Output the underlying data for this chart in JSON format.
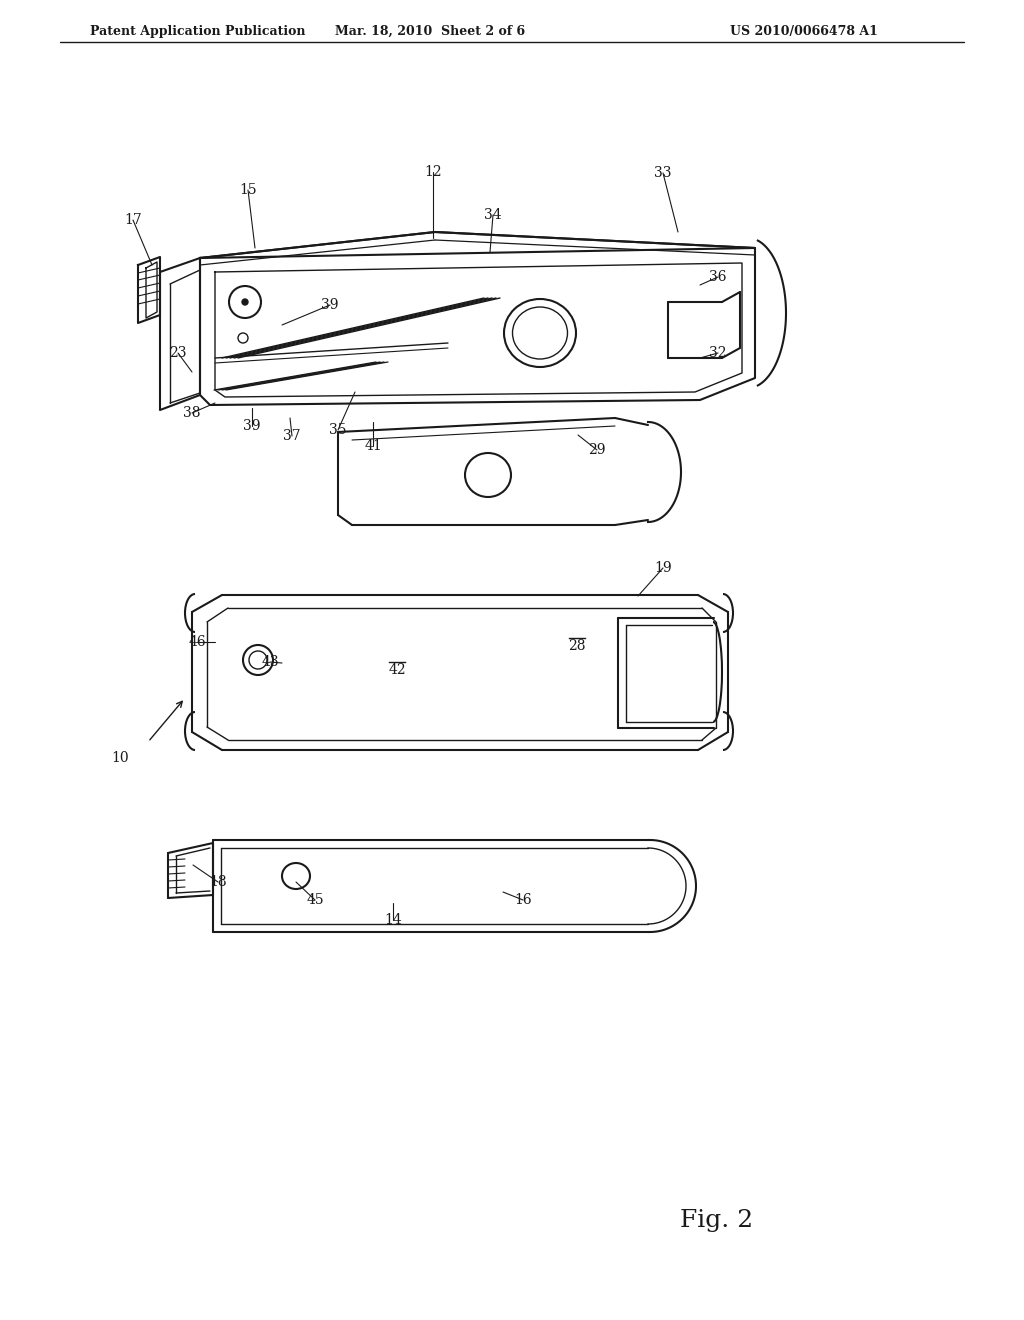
{
  "bg_color": "#ffffff",
  "line_color": "#1a1a1a",
  "header_left": "Patent Application Publication",
  "header_mid": "Mar. 18, 2010  Sheet 2 of 6",
  "header_right": "US 2010/0066478 A1",
  "fig_label": "Fig. 2"
}
